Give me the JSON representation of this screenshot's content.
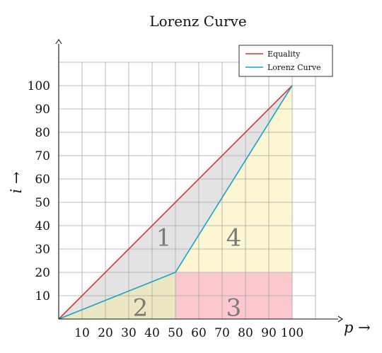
{
  "chart_data": {
    "type": "line",
    "title": "Lorenz Curve",
    "xlabel": "p →",
    "ylabel": "i →",
    "xlim": [
      0,
      100
    ],
    "ylim": [
      0,
      100
    ],
    "x_ticks": [
      10,
      20,
      30,
      40,
      50,
      60,
      70,
      80,
      90,
      100
    ],
    "y_ticks": [
      10,
      20,
      30,
      40,
      50,
      60,
      70,
      80,
      90,
      100
    ],
    "grid": true,
    "legend_position": "top-right",
    "series": [
      {
        "name": "Equality",
        "color": "#d9323f",
        "x": [
          0,
          100
        ],
        "y": [
          0,
          100
        ]
      },
      {
        "name": "Lorenz Curve",
        "color": "#1aa3c6",
        "x": [
          0,
          50,
          100
        ],
        "y": [
          0,
          20,
          100
        ]
      }
    ],
    "regions": [
      {
        "label": "1",
        "color": "#e3e3e3",
        "polygon": [
          [
            0,
            0
          ],
          [
            50,
            20
          ],
          [
            100,
            100
          ]
        ],
        "label_at": [
          45,
          35
        ]
      },
      {
        "label": "2",
        "color": "#ebe7c2",
        "polygon": [
          [
            0,
            0
          ],
          [
            50,
            0
          ],
          [
            50,
            20
          ]
        ],
        "label_at": [
          35,
          5
        ]
      },
      {
        "label": "3",
        "color": "#fac8cd",
        "polygon": [
          [
            50,
            0
          ],
          [
            100,
            0
          ],
          [
            100,
            20
          ],
          [
            50,
            20
          ]
        ],
        "label_at": [
          75,
          5
        ]
      },
      {
        "label": "4",
        "color": "#fcf6d2",
        "polygon": [
          [
            50,
            20
          ],
          [
            100,
            20
          ],
          [
            100,
            100
          ]
        ],
        "label_at": [
          75,
          35
        ]
      }
    ]
  }
}
